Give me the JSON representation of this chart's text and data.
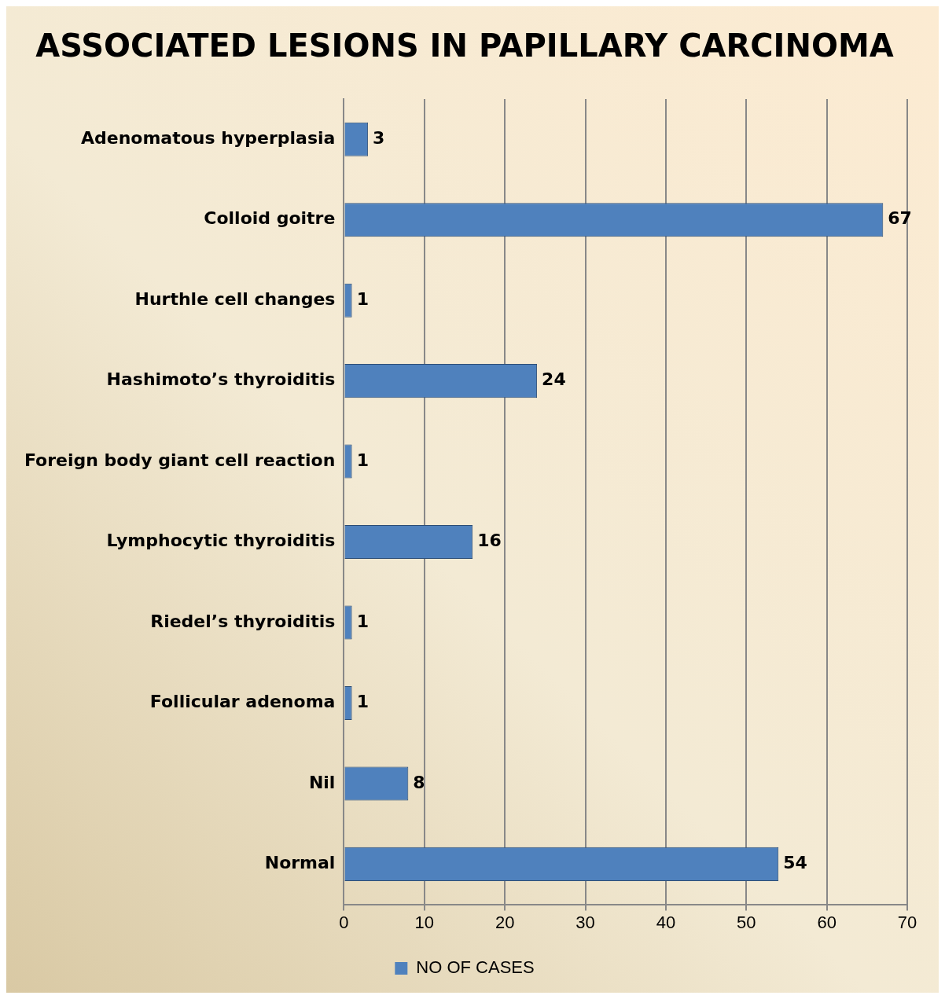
{
  "chart_data": {
    "type": "bar",
    "orientation": "horizontal",
    "title": "ASSOCIATED LESIONS IN PAPILLARY CARCINOMA",
    "categories": [
      "Adenomatous hyperplasia",
      "Colloid goitre",
      "Hurthle cell changes",
      "Hashimoto’s thyroiditis",
      "Foreign body giant cell reaction",
      "Lymphocytic thyroiditis",
      "Riedel’s thyroiditis",
      "Follicular adenoma",
      "Nil",
      "Normal"
    ],
    "series": [
      {
        "name": "NO OF CASES",
        "color": "#4f81bd",
        "values": [
          3,
          67,
          1,
          24,
          1,
          16,
          1,
          1,
          8,
          54
        ]
      }
    ],
    "xlim": [
      0,
      70
    ],
    "xticks": [
      0,
      10,
      20,
      30,
      40,
      50,
      60,
      70
    ],
    "grid": "x",
    "legend": "bottom",
    "data_labels": true
  }
}
